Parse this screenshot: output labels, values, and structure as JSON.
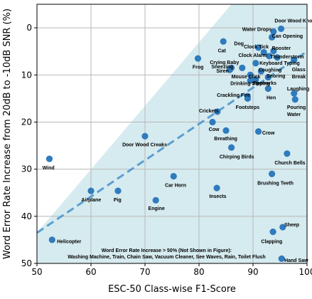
{
  "chart_data": {
    "type": "scatter",
    "xlabel": "ESC-50 Class-wise F1-Score",
    "ylabel": "Word Error Rate Increase from 20dB to -10dB SNR (%)",
    "xlim": [
      50,
      100
    ],
    "ylim": [
      50,
      -5
    ],
    "y_inverted": true,
    "grid": true,
    "x_ticks": [
      50,
      60,
      70,
      80,
      90,
      100
    ],
    "y_ticks": [
      0,
      10,
      20,
      30,
      40,
      50
    ],
    "x_tick_labels": [
      "50",
      "60",
      "70",
      "80",
      "90",
      "100"
    ],
    "y_tick_labels": [
      "0",
      "10",
      "20",
      "30",
      "40",
      "50"
    ],
    "point_color": "#2f7bbd",
    "region_color": "#d6ebef",
    "fit_color": "#5b9fd0",
    "shaded_region": {
      "polygon": [
        [
          50,
          43.5
        ],
        [
          50,
          50
        ],
        [
          100,
          50
        ],
        [
          100,
          -5
        ],
        [
          86,
          -5
        ]
      ]
    },
    "trend_line": {
      "x": [
        50,
        100
      ],
      "y": [
        43.5,
        5.0
      ]
    },
    "note_lines": [
      "Word Error Rate Increase > 50% (Not Shown in Figure):",
      "Washing Machine, Train, Chain Saw, Vacuum Cleaner, See Waves, Rain, Toilet Flush"
    ],
    "points": [
      {
        "x": 95.2,
        "y": 0.2,
        "lx": 94.0,
        "ly": -1.5,
        "label": "Door Wood Knock"
      },
      {
        "x": 93.8,
        "y": 0.8,
        "lx": 88.0,
        "ly": 0.3,
        "label": "Water Drops"
      },
      {
        "x": 93.5,
        "y": 2.0,
        "lx": 93.5,
        "ly": 1.7,
        "label": "Can Opening"
      },
      {
        "x": 84.5,
        "y": 2.9,
        "lx": 83.5,
        "ly": 4.8,
        "label": "Cat"
      },
      {
        "x": 91.0,
        "y": 4.2,
        "lx": 86.5,
        "ly": 3.3,
        "label": "Dog"
      },
      {
        "x": 93.8,
        "y": 4.9,
        "lx": 93.5,
        "ly": 4.3,
        "label": "Rooster"
      },
      {
        "x": 92.0,
        "y": 5.2,
        "lx": 88.3,
        "ly": 4.0,
        "label": "Clock Tick"
      },
      {
        "x": 93.0,
        "y": 6.0,
        "lx": 87.3,
        "ly": 5.8,
        "label": "Clock Alarm"
      },
      {
        "x": 94.5,
        "y": 6.3,
        "lx": 93.2,
        "ly": 6.1,
        "label": "Thunderstorm"
      },
      {
        "x": 79.8,
        "y": 6.5,
        "lx": 78.8,
        "ly": 8.3,
        "label": "Frog"
      },
      {
        "x": 90.5,
        "y": 7.5,
        "lx": 91.2,
        "ly": 7.5,
        "label": "Keyboard Typing"
      },
      {
        "x": 97.6,
        "y": 6.8,
        "lx": 97.2,
        "ly": 8.8,
        "label": "Glass Break"
      },
      {
        "x": 86.0,
        "y": 8.5,
        "lx": 82.0,
        "ly": 7.3,
        "label": "Crying Baby"
      },
      {
        "x": 88.0,
        "y": 8.5,
        "lx": 82.3,
        "ly": 8.2,
        "label": "Sneezing"
      },
      {
        "x": 85.7,
        "y": 8.9,
        "lx": 83.2,
        "ly": 9.1,
        "label": "Siren"
      },
      {
        "x": 91.5,
        "y": 9.2,
        "lx": 91.0,
        "ly": 8.9,
        "label": "Coughing"
      },
      {
        "x": 89.5,
        "y": 10.0,
        "lx": 86.0,
        "ly": 10.3,
        "label": "Mouse Click"
      },
      {
        "x": 92.8,
        "y": 10.5,
        "lx": 92.5,
        "ly": 10.2,
        "label": "Snoring"
      },
      {
        "x": 90.5,
        "y": 11.0,
        "lx": 90.0,
        "ly": 11.7,
        "label": "Fireworks"
      },
      {
        "x": 89.5,
        "y": 11.2,
        "lx": 85.8,
        "ly": 11.8,
        "label": "Drinking Sipping"
      },
      {
        "x": 92.8,
        "y": 12.9,
        "lx": 92.5,
        "ly": 14.8,
        "label": "Hen"
      },
      {
        "x": 97.6,
        "y": 13.9,
        "lx": 96.3,
        "ly": 12.9,
        "label": "Laughing"
      },
      {
        "x": 89.0,
        "y": 14.5,
        "lx": 83.3,
        "ly": 14.3,
        "label": "Crackling Fire"
      },
      {
        "x": 97.8,
        "y": 15.2,
        "lx": 96.3,
        "ly": 16.8,
        "label": "Pouring Water"
      },
      {
        "x": 89.0,
        "y": 15.0,
        "lx": 86.8,
        "ly": 16.8,
        "label": "Footsteps"
      },
      {
        "x": 83.4,
        "y": 17.8,
        "lx": 80.0,
        "ly": 17.6,
        "label": "Crickets"
      },
      {
        "x": 82.5,
        "y": 20.0,
        "lx": 81.8,
        "ly": 21.5,
        "label": "Cow"
      },
      {
        "x": 91.0,
        "y": 22.0,
        "lx": 91.7,
        "ly": 22.3,
        "label": "Crow"
      },
      {
        "x": 85.0,
        "y": 21.8,
        "lx": 82.8,
        "ly": 23.5,
        "label": "Breathing"
      },
      {
        "x": 70.0,
        "y": 23.0,
        "lx": 65.8,
        "ly": 24.8,
        "label": "Door Wood Creaks"
      },
      {
        "x": 86.0,
        "y": 25.4,
        "lx": 83.8,
        "ly": 27.3,
        "label": "Chirping Birds"
      },
      {
        "x": 96.3,
        "y": 26.7,
        "lx": 94.0,
        "ly": 28.6,
        "label": "Church Bells"
      },
      {
        "x": 52.3,
        "y": 27.8,
        "lx": 51.0,
        "ly": 29.7,
        "label": "Wind"
      },
      {
        "x": 93.5,
        "y": 31.0,
        "lx": 90.8,
        "ly": 32.9,
        "label": "Brushing Teeth"
      },
      {
        "x": 75.3,
        "y": 31.5,
        "lx": 73.7,
        "ly": 33.4,
        "label": "Car Horn"
      },
      {
        "x": 83.3,
        "y": 34.0,
        "lx": 81.9,
        "ly": 35.7,
        "label": "Insects"
      },
      {
        "x": 60.0,
        "y": 34.6,
        "lx": 58.2,
        "ly": 36.5,
        "label": "Airplane"
      },
      {
        "x": 65.0,
        "y": 34.6,
        "lx": 64.2,
        "ly": 36.5,
        "label": "Pig"
      },
      {
        "x": 72.0,
        "y": 36.6,
        "lx": 70.6,
        "ly": 38.3,
        "label": "Engine"
      },
      {
        "x": 95.5,
        "y": 42.3,
        "lx": 95.8,
        "ly": 41.8,
        "label": "Sheep"
      },
      {
        "x": 93.7,
        "y": 43.3,
        "lx": 91.5,
        "ly": 45.3,
        "label": "Clapping"
      },
      {
        "x": 52.8,
        "y": 45.0,
        "lx": 53.7,
        "ly": 45.3,
        "label": "Helicopter"
      },
      {
        "x": 95.3,
        "y": 49.0,
        "lx": 95.8,
        "ly": 49.3,
        "label": "Hand Saw"
      }
    ]
  }
}
